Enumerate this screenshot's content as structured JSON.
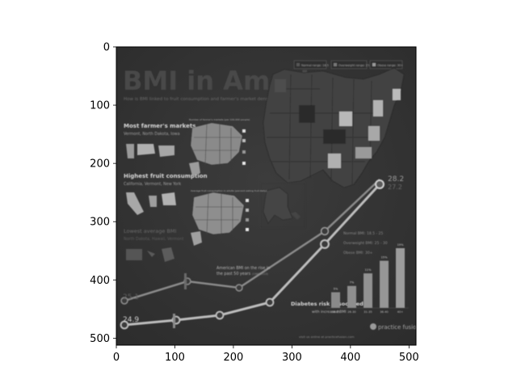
{
  "chart_data": {
    "type": "image",
    "x": {
      "ticks": [
        0,
        100,
        200,
        300,
        400,
        500
      ],
      "lim": [
        0,
        512
      ]
    },
    "y": {
      "ticks": [
        0,
        100,
        200,
        300,
        400,
        500
      ],
      "lim": [
        512,
        0
      ],
      "inverted": true
    },
    "image": {
      "title_main": "BMI in America",
      "subtitle": "How is BMI linked to fruit consumption and farmer's market density",
      "legend_items": [
        "Normal range: 18.5",
        "Overweight range: 25-30",
        "Obese range: 30+"
      ],
      "sections": [
        {
          "heading": "Most farmer's markets",
          "detail": "Vermont, North Dakota, Iowa"
        },
        {
          "heading": "Highest fruit consumption",
          "detail": "California, Vermont, New York"
        },
        {
          "heading": "Lowest average BMI",
          "detail": "North Dakota, Hawaii, Vermont"
        }
      ],
      "mini_map_titles": [
        "Number of farmer's markets (per 100,000 people)",
        "Average fruit consumption in adults (percent eating fruit daily)"
      ],
      "trend_note_line1": "American BMI on the rise in",
      "trend_note_line2": "the past 50 years",
      "trend_note_years": "(1960-2010)",
      "bmi_start_upper": "25.1",
      "bmi_start_lower": "24.9",
      "bmi_end_upper": "28.2",
      "bmi_end_lower": "27.2",
      "bmi_ranges": [
        "Normal BMI: 18.5 - 25",
        "Overweight BMI: 25 - 30",
        "Obese BMI: 30+"
      ],
      "diabetes_title": "Diabetes risk associated",
      "diabetes_subtitle": "with increased BMI",
      "diabetes_bars": [
        {
          "label": "18-25",
          "value_label": "5%",
          "value": 5
        },
        {
          "label": "26-30",
          "value_label": "7%",
          "value": 7
        },
        {
          "label": "31-35",
          "value_label": "11%",
          "value": 11
        },
        {
          "label": "36-40",
          "value_label": "15%",
          "value": 15
        },
        {
          "label": "40+",
          "value_label": "19%",
          "value": 19
        }
      ],
      "brand": "practice fusion",
      "footer": "visit us online at practicefusion.com"
    }
  }
}
